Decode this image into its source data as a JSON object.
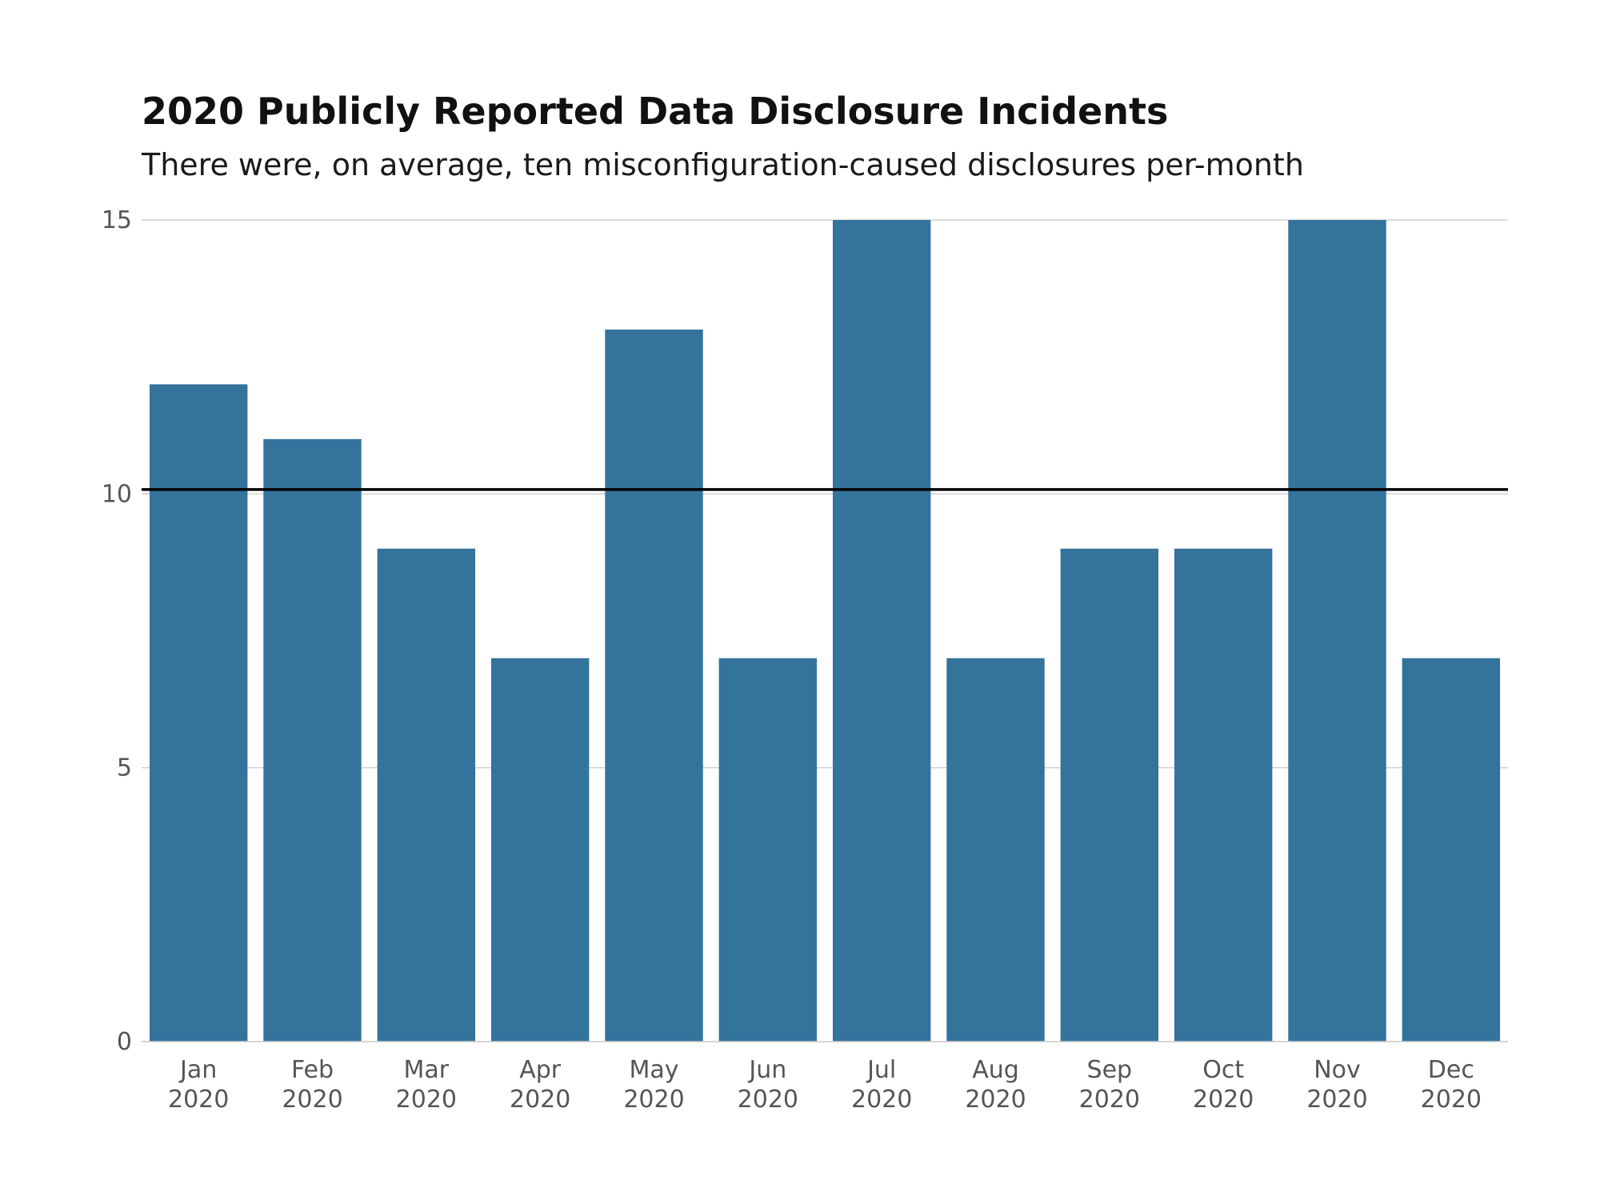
{
  "chart_data": {
    "type": "bar",
    "title": "2020 Publicly Reported Data Disclosure Incidents",
    "subtitle": "There were, on average, ten misconfiguration-caused disclosures per-month",
    "xlabel": "",
    "ylabel": "",
    "categories": [
      [
        "Jan",
        "2020"
      ],
      [
        "Feb",
        "2020"
      ],
      [
        "Mar",
        "2020"
      ],
      [
        "Apr",
        "2020"
      ],
      [
        "May",
        "2020"
      ],
      [
        "Jun",
        "2020"
      ],
      [
        "Jul",
        "2020"
      ],
      [
        "Aug",
        "2020"
      ],
      [
        "Sep",
        "2020"
      ],
      [
        "Oct",
        "2020"
      ],
      [
        "Nov",
        "2020"
      ],
      [
        "Dec",
        "2020"
      ]
    ],
    "values": [
      12,
      11,
      9,
      7,
      13,
      7,
      15,
      7,
      9,
      9,
      15,
      7
    ],
    "ylim": [
      0,
      15
    ],
    "yticks": [
      0,
      5,
      10,
      15
    ],
    "reference_line": 10.08,
    "grid": true,
    "colors": {
      "bar": "#33739c",
      "reference": "#000000",
      "grid": "#d0d0d0"
    }
  }
}
